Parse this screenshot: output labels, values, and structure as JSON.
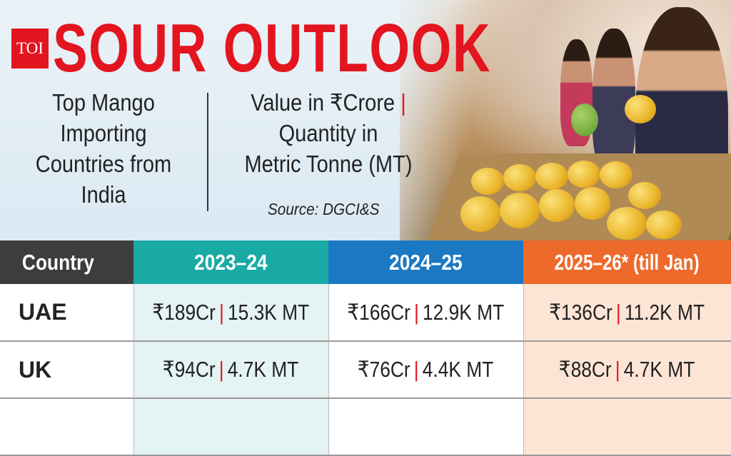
{
  "title": "SOUR OUTLOOK",
  "logo": "TOI",
  "subtitle_left": [
    "Top Mango",
    "Importing",
    "Countries from",
    "India"
  ],
  "subtitle_right": {
    "line1": "Value in ₹Crore",
    "line1_bar": "|",
    "line2": "Quantity in",
    "line3": "Metric Tonne (MT)"
  },
  "source": "Source: DGCI&S",
  "table": {
    "headers": [
      "Country",
      "2023–24",
      "2024–25",
      "2025–26* (till Jan)"
    ],
    "rows": [
      {
        "country": "UAE",
        "cells": [
          {
            "value": "₹189Cr",
            "qty": "15.3K MT"
          },
          {
            "value": "₹166Cr",
            "qty": "12.9K MT"
          },
          {
            "value": "₹136Cr",
            "qty": "11.2K MT"
          }
        ]
      },
      {
        "country": "UK",
        "cells": [
          {
            "value": "₹94Cr",
            "qty": "4.7K MT"
          },
          {
            "value": "₹76Cr",
            "qty": "4.4K MT"
          },
          {
            "value": "₹88Cr",
            "qty": "4.7K MT"
          }
        ]
      }
    ]
  },
  "colors": {
    "title": "#e3151f",
    "country_header": "#3d3d3d",
    "col_2023": "#19aaa3",
    "col_2024": "#1b78c3",
    "col_2025": "#ee6a2a"
  }
}
